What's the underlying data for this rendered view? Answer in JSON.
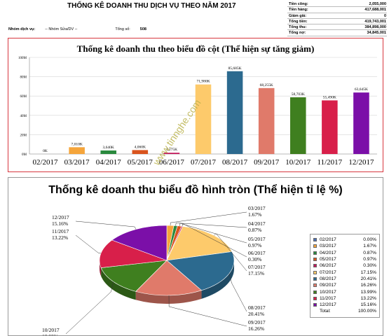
{
  "report": {
    "title": "THỐNG KÊ DOANH THU DỊCH VỤ THEO NĂM 2017",
    "summary": [
      {
        "label": "Tiền công:",
        "value": "2,055,000"
      },
      {
        "label": "Tiền hàng:",
        "value": "417,688,001"
      },
      {
        "label": "Giảm giá:",
        "value": "0"
      },
      {
        "label": "Tổng tiền:",
        "value": "419,743,001"
      },
      {
        "label": "Tổng thu:",
        "value": "384,898,000"
      },
      {
        "label": "Tổng nợ:",
        "value": "34,845,001"
      }
    ],
    "filters": {
      "service_label": "Nhóm dịch vụ:",
      "service_value": "-- Nhóm Sửa/DV --",
      "total_label": "Tổng số:",
      "total_value": "508"
    }
  },
  "watermark": "www.tinnghe.com",
  "chart_data": [
    {
      "type": "bar",
      "title": "Thống kê doanh thu theo biểu đồ cột (Thể hiện sự tăng giảm)",
      "categories": [
        "02/2017",
        "03/2017",
        "04/2017",
        "05/2017",
        "06/2017",
        "07/2017",
        "08/2017",
        "09/2017",
        "10/2017",
        "11/2017",
        "12/2017"
      ],
      "values": [
        0,
        7010,
        3640,
        4060,
        1275,
        71980,
        85685,
        68255,
        58703,
        55490,
        63645
      ],
      "data_labels": [
        "0K",
        "7,010K",
        "3,640K",
        "4,060K",
        "1,275K",
        "71,980K",
        "85,685K",
        "68,255K",
        "58,703K",
        "55,490K",
        "63,645K"
      ],
      "colors": [
        "#4a6fb5",
        "#f5a53b",
        "#2a8a3e",
        "#d9541e",
        "#c2185b",
        "#fdca6b",
        "#2c6a8f",
        "#e07a6a",
        "#3f7f1f",
        "#d81f4a",
        "#7b0fa8"
      ],
      "ylim": [
        0,
        100000
      ],
      "yticks": [
        0,
        20000,
        40000,
        60000,
        80000,
        100000
      ],
      "ytick_labels": [
        "0M",
        "20M",
        "40M",
        "60M",
        "80M",
        "100M"
      ],
      "grid": true
    },
    {
      "type": "pie",
      "title": "Thống kê doanh thu biểu đồ hình tròn (Thể hiện tỉ lệ %)",
      "categories": [
        "02/2017",
        "03/2017",
        "04/2017",
        "05/2017",
        "06/2017",
        "07/2017",
        "08/2017",
        "09/2017",
        "10/2017",
        "11/2017",
        "12/2017"
      ],
      "values": [
        0.0,
        1.67,
        0.87,
        0.97,
        0.3,
        17.15,
        20.41,
        16.26,
        13.99,
        13.22,
        15.16
      ],
      "percent_labels": [
        "0.00%",
        "1.67%",
        "0.87%",
        "0.97%",
        "0.30%",
        "17.15%",
        "20.41%",
        "16.26%",
        "13.99%",
        "13.22%",
        "15.16%"
      ],
      "colors": [
        "#4a6fb5",
        "#f5a53b",
        "#2a8a3e",
        "#d9541e",
        "#c2185b",
        "#fdca6b",
        "#2c6a8f",
        "#e07a6a",
        "#3f7f1f",
        "#d81f4a",
        "#7b0fa8"
      ],
      "legend": {
        "placement": "right",
        "total_label": "Total:",
        "total_value": "100.00%"
      }
    }
  ]
}
